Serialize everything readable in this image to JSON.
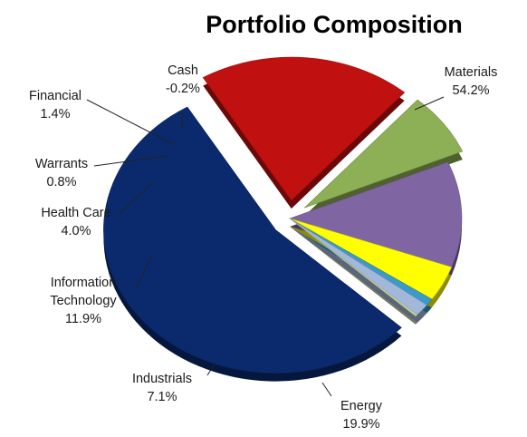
{
  "chart_data": {
    "type": "pie",
    "title": "Portfolio Composition",
    "slices": [
      {
        "name": "Materials",
        "value": 54.2,
        "display": "54.2%",
        "color": "#0b2a6e",
        "exploded": true
      },
      {
        "name": "Energy",
        "value": 19.9,
        "display": "19.9%",
        "color": "#c01010",
        "exploded": true
      },
      {
        "name": "Industrials",
        "value": 7.1,
        "display": "7.1%",
        "color": "#8db056",
        "exploded": true
      },
      {
        "name": "Information Technology",
        "label_lines": [
          "Information",
          "Technology"
        ],
        "value": 11.9,
        "display": "11.9%",
        "color": "#7f66a3",
        "exploded": false
      },
      {
        "name": "Health Care",
        "value": 4.0,
        "display": "4.0%",
        "color": "#ffff00",
        "exploded": false
      },
      {
        "name": "Warrants",
        "value": 0.8,
        "display": "0.8%",
        "color": "#3b9ac8",
        "exploded": false
      },
      {
        "name": "Financial",
        "value": 1.4,
        "display": "1.4%",
        "color": "#a3b7da",
        "exploded": false
      },
      {
        "name": "Cash",
        "value": -0.2,
        "display": "-0.2%",
        "color": "#c7d6a4",
        "exploded": false
      }
    ],
    "legend": "none",
    "data_labels": "outside with leader lines"
  }
}
